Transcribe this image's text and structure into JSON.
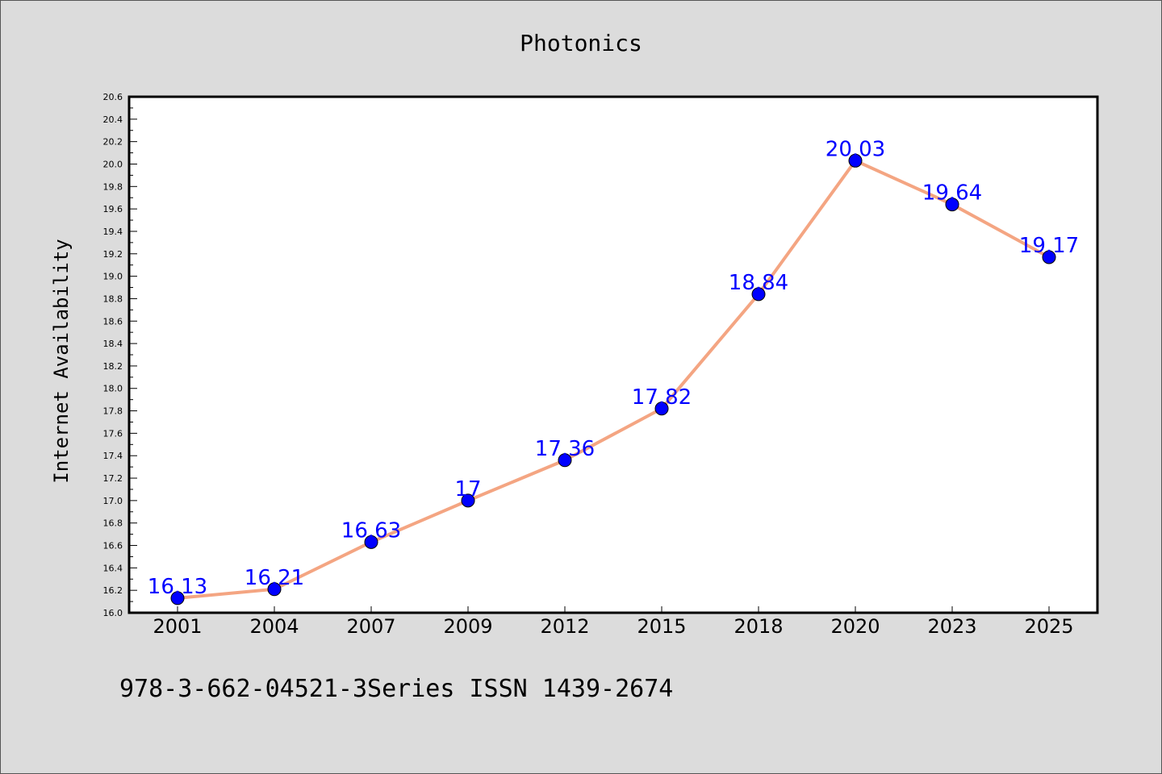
{
  "chart_data": {
    "type": "line",
    "title": "Photonics",
    "xlabel": "",
    "ylabel": "Internet Availability",
    "categories": [
      "2001",
      "2004",
      "2007",
      "2009",
      "2012",
      "2015",
      "2018",
      "2020",
      "2023",
      "2025"
    ],
    "series": [
      {
        "values": [
          16.13,
          16.21,
          16.63,
          17,
          17.36,
          17.82,
          18.84,
          20.03,
          19.64,
          19.17
        ],
        "line_color": "#f4a582",
        "marker_color": "#0000ff"
      }
    ],
    "data_labels": [
      "16.13",
      "16.21",
      "16.63",
      "17",
      "17.36",
      "17.82",
      "18.84",
      "20.03",
      "19.64",
      "19.17"
    ],
    "data_label_color": "#0000ff",
    "ylim": [
      16.0,
      20.6
    ],
    "yticks": [
      "16.0",
      "16.2",
      "16.4",
      "16.6",
      "16.8",
      "17.0",
      "17.2",
      "17.4",
      "17.6",
      "17.8",
      "18.0",
      "18.2",
      "18.4",
      "18.6",
      "18.8",
      "19.0",
      "19.2",
      "19.4",
      "19.6",
      "19.8",
      "20.0",
      "20.2",
      "20.4",
      "20.6"
    ],
    "grid": false,
    "legend": "none"
  },
  "footer": {
    "text": "978-3-662-04521-3Series ISSN 1439-2674"
  },
  "colors": {
    "page_background": "#dcdcdc",
    "plot_background": "#ffffff"
  }
}
